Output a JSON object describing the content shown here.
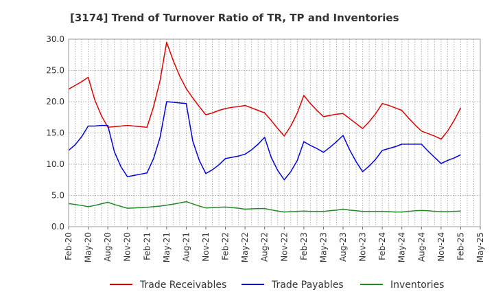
{
  "chart_data": {
    "type": "line",
    "title": "[3174]  Trend of Turnover Ratio of TR, TP and Inventories",
    "xlabel": "",
    "ylabel": "",
    "ylim": [
      0,
      30
    ],
    "yticks": [
      "0.0",
      "5.0",
      "10.0",
      "15.0",
      "20.0",
      "25.0",
      "30.0"
    ],
    "x_tick_labels": [
      "Feb-20",
      "May-20",
      "Aug-20",
      "Nov-20",
      "Feb-21",
      "May-21",
      "Aug-21",
      "Nov-21",
      "Feb-22",
      "May-22",
      "Aug-22",
      "Nov-22",
      "Feb-23",
      "May-23",
      "Aug-23",
      "Nov-23",
      "Feb-24",
      "May-24",
      "Aug-24",
      "Nov-24",
      "Feb-25",
      "May-25"
    ],
    "x": [
      "2020-02",
      "2020-03",
      "2020-04",
      "2020-05",
      "2020-06",
      "2020-07",
      "2020-08",
      "2020-09",
      "2020-10",
      "2020-11",
      "2020-12",
      "2021-01",
      "2021-02",
      "2021-03",
      "2021-04",
      "2021-05",
      "2021-06",
      "2021-07",
      "2021-08",
      "2021-09",
      "2021-10",
      "2021-11",
      "2021-12",
      "2022-01",
      "2022-02",
      "2022-03",
      "2022-04",
      "2022-05",
      "2022-06",
      "2022-07",
      "2022-08",
      "2022-09",
      "2022-10",
      "2022-11",
      "2022-12",
      "2023-01",
      "2023-02",
      "2023-03",
      "2023-04",
      "2023-05",
      "2023-06",
      "2023-07",
      "2023-08",
      "2023-09",
      "2023-10",
      "2023-11",
      "2023-12",
      "2024-01",
      "2024-02",
      "2024-03",
      "2024-04",
      "2024-05",
      "2024-06",
      "2024-07",
      "2024-08",
      "2024-09",
      "2024-10",
      "2024-11",
      "2024-12",
      "2025-01",
      "2025-02"
    ],
    "series": [
      {
        "name": "Trade Receivables",
        "color": "#dd0000",
        "values": [
          22.0,
          22.6,
          23.2,
          23.9,
          20.3,
          17.8,
          15.9,
          16.0,
          16.1,
          16.2,
          16.1,
          16.0,
          15.9,
          19.2,
          23.4,
          29.5,
          26.6,
          24.1,
          22.1,
          20.6,
          19.2,
          17.9,
          18.2,
          18.6,
          18.9,
          19.1,
          19.2,
          19.4,
          19.0,
          18.6,
          18.2,
          17.0,
          15.7,
          14.5,
          16.1,
          18.2,
          21.0,
          19.7,
          18.6,
          17.6,
          17.8,
          18.0,
          18.1,
          17.3,
          16.5,
          15.7,
          16.8,
          18.1,
          19.7,
          19.4,
          19.0,
          18.6,
          17.4,
          16.3,
          15.3,
          14.9,
          14.5,
          14.0,
          15.3,
          17.0,
          19.0
        ]
      },
      {
        "name": "Trade Payables",
        "color": "#0000dd",
        "values": [
          12.2,
          13.1,
          14.4,
          16.1,
          16.1,
          16.2,
          16.2,
          12.0,
          9.6,
          8.0,
          8.2,
          8.4,
          8.6,
          10.9,
          14.3,
          20.0,
          19.9,
          19.8,
          19.7,
          13.7,
          10.6,
          8.5,
          9.1,
          9.9,
          10.9,
          11.1,
          11.3,
          11.6,
          12.3,
          13.2,
          14.3,
          11.1,
          9.0,
          7.5,
          8.8,
          10.6,
          13.6,
          13.0,
          12.5,
          11.9,
          12.7,
          13.6,
          14.6,
          12.3,
          10.4,
          8.8,
          9.7,
          10.8,
          12.2,
          12.5,
          12.8,
          13.2,
          13.2,
          13.2,
          13.2,
          12.1,
          11.1,
          10.1,
          10.6,
          11.0,
          11.5
        ]
      },
      {
        "name": "Inventories",
        "color": "#228822",
        "values": [
          3.7,
          3.55,
          3.4,
          3.2,
          3.4,
          3.65,
          3.9,
          3.55,
          3.25,
          2.95,
          3.0,
          3.05,
          3.1,
          3.2,
          3.3,
          3.45,
          3.6,
          3.8,
          4.0,
          3.65,
          3.3,
          3.0,
          3.05,
          3.1,
          3.15,
          3.05,
          2.95,
          2.8,
          2.85,
          2.9,
          2.9,
          2.7,
          2.5,
          2.35,
          2.4,
          2.45,
          2.5,
          2.45,
          2.45,
          2.45,
          2.55,
          2.65,
          2.8,
          2.65,
          2.55,
          2.45,
          2.45,
          2.45,
          2.45,
          2.4,
          2.35,
          2.35,
          2.45,
          2.55,
          2.6,
          2.55,
          2.45,
          2.4,
          2.4,
          2.45,
          2.5
        ]
      }
    ],
    "grid": true,
    "grid_style": "dotted",
    "legend_position": "bottom"
  }
}
